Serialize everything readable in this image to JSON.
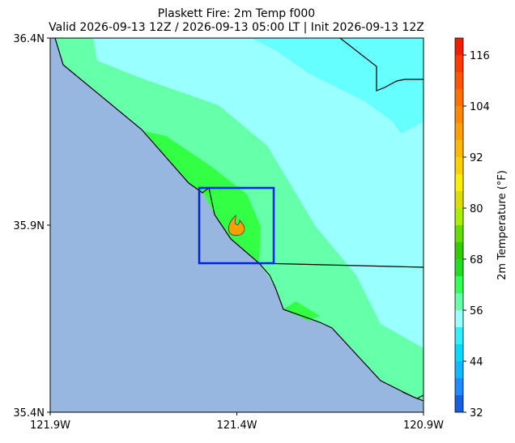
{
  "chart_data": {
    "type": "map",
    "title": "Plaskett Fire: 2m Temp f000",
    "subtitle": "Valid 2026-09-13 12Z / 2026-09-13 05:00 LT | Init 2026-09-13 12Z",
    "xlim": [
      -121.9,
      -120.9
    ],
    "ylim": [
      35.4,
      36.4
    ],
    "xticks": [
      {
        "value": -121.9,
        "label": "121.9W"
      },
      {
        "value": -121.4,
        "label": "121.4W"
      },
      {
        "value": -120.9,
        "label": "120.9W"
      }
    ],
    "yticks": [
      {
        "value": 35.4,
        "label": "35.4N"
      },
      {
        "value": 35.9,
        "label": "35.9N"
      },
      {
        "value": 36.4,
        "label": "36.4N"
      }
    ],
    "colorbar": {
      "label": "2m Temperature (°F)",
      "lim": [
        32,
        120
      ],
      "step": 4,
      "ticks": [
        32,
        44,
        56,
        68,
        80,
        92,
        104,
        116
      ],
      "colors": [
        "#1560e0",
        "#1e8cff",
        "#10b8ff",
        "#00dcff",
        "#33eeff",
        "#99ffff",
        "#66ffaa",
        "#33ff55",
        "#22dd22",
        "#33cc00",
        "#66dd00",
        "#aaee00",
        "#dddd00",
        "#ffee00",
        "#ffd000",
        "#ffb800",
        "#ffa000",
        "#ff8800",
        "#ff7000",
        "#ff5500",
        "#ff3a00",
        "#ee2000"
      ]
    }
  }
}
